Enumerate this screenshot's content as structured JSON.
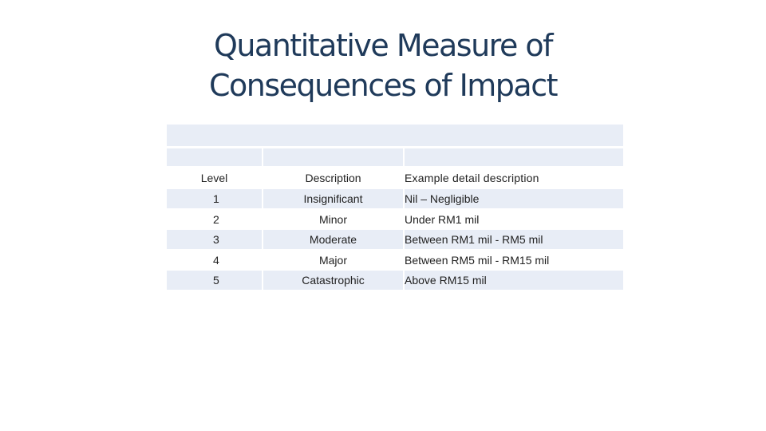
{
  "title": {
    "line1": "Quantitative Measure of",
    "line2": "Consequences of Impact"
  },
  "table": {
    "headers": [
      "Level",
      "Description",
      "Example detail description"
    ],
    "rows": [
      [
        "1",
        "Insignificant",
        "Nil – Negligible"
      ],
      [
        "2",
        "Minor",
        "Under RM1 mil"
      ],
      [
        "3",
        "Moderate",
        "Between RM1 mil - RM5 mil"
      ],
      [
        "4",
        "Major",
        "Between RM5 mil - RM15 mil"
      ],
      [
        "5",
        "Catastrophic",
        "Above RM15 mil"
      ]
    ]
  },
  "colors": {
    "title": "#1f3a5a",
    "cell_fill": "#e8edf6",
    "text": "#222222"
  }
}
